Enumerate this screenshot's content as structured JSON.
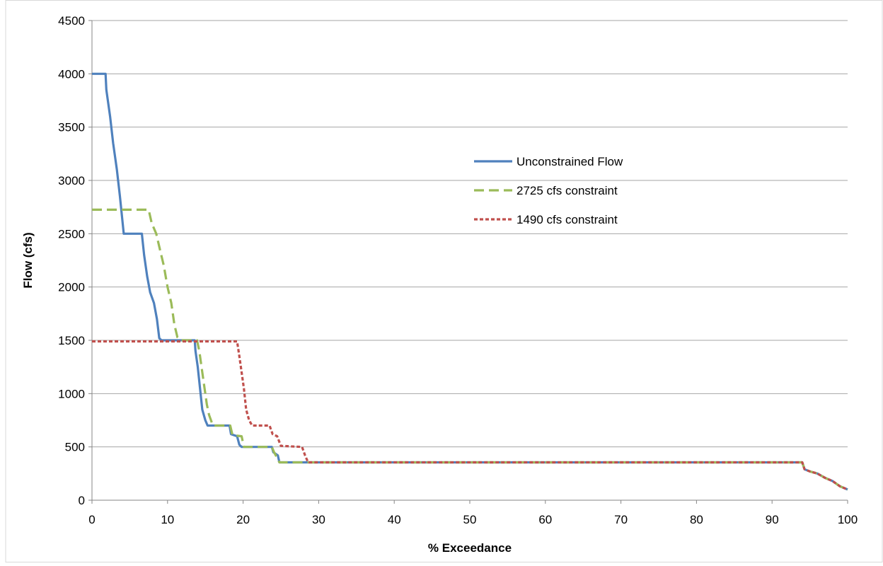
{
  "chart_data": {
    "type": "line",
    "title": "",
    "xlabel": "% Exceedance",
    "ylabel": "Flow (cfs)",
    "xlim": [
      0,
      100
    ],
    "ylim": [
      0,
      4500
    ],
    "x_ticks": [
      0,
      10,
      20,
      30,
      40,
      50,
      60,
      70,
      80,
      90,
      100
    ],
    "y_ticks": [
      0,
      500,
      1000,
      1500,
      2000,
      2500,
      3000,
      3500,
      4000,
      4500
    ],
    "grid": "horizontal",
    "legend_position": "upper-center-right",
    "series": [
      {
        "name": "Unconstrained Flow",
        "color": "#4F81BD",
        "style": "solid",
        "points": [
          [
            0,
            4000
          ],
          [
            1.8,
            4000
          ],
          [
            1.9,
            3850
          ],
          [
            2.4,
            3600
          ],
          [
            2.8,
            3350
          ],
          [
            3.3,
            3100
          ],
          [
            3.7,
            2850
          ],
          [
            4.2,
            2500
          ],
          [
            6.6,
            2500
          ],
          [
            6.9,
            2300
          ],
          [
            7.3,
            2100
          ],
          [
            7.7,
            1950
          ],
          [
            8.2,
            1850
          ],
          [
            8.6,
            1700
          ],
          [
            8.9,
            1520
          ],
          [
            9.2,
            1500
          ],
          [
            13.6,
            1500
          ],
          [
            13.7,
            1400
          ],
          [
            14.0,
            1250
          ],
          [
            14.3,
            1050
          ],
          [
            14.6,
            850
          ],
          [
            15.0,
            750
          ],
          [
            15.3,
            700
          ],
          [
            18.2,
            700
          ],
          [
            18.4,
            620
          ],
          [
            19.2,
            600
          ],
          [
            19.5,
            520
          ],
          [
            19.8,
            500
          ],
          [
            23.8,
            500
          ],
          [
            24.0,
            450
          ],
          [
            24.6,
            420
          ],
          [
            24.8,
            355
          ],
          [
            94.0,
            355
          ],
          [
            94.3,
            290
          ],
          [
            95.0,
            270
          ],
          [
            96.0,
            250
          ],
          [
            97.0,
            210
          ],
          [
            98.0,
            180
          ],
          [
            99.0,
            130
          ],
          [
            100,
            100
          ]
        ]
      },
      {
        "name": "2725 cfs constraint",
        "color": "#9BBB59",
        "style": "dashed",
        "points": [
          [
            0,
            2725
          ],
          [
            7.5,
            2725
          ],
          [
            7.9,
            2600
          ],
          [
            8.5,
            2500
          ],
          [
            9.0,
            2350
          ],
          [
            9.5,
            2200
          ],
          [
            10.0,
            2000
          ],
          [
            10.5,
            1850
          ],
          [
            10.9,
            1650
          ],
          [
            11.3,
            1530
          ],
          [
            11.7,
            1500
          ],
          [
            13.9,
            1500
          ],
          [
            14.2,
            1400
          ],
          [
            14.6,
            1200
          ],
          [
            14.9,
            1050
          ],
          [
            15.2,
            900
          ],
          [
            15.5,
            800
          ],
          [
            16.0,
            700
          ],
          [
            18.3,
            700
          ],
          [
            18.6,
            610
          ],
          [
            19.8,
            600
          ],
          [
            20.1,
            500
          ],
          [
            23.8,
            500
          ],
          [
            24.1,
            450
          ],
          [
            24.8,
            355
          ],
          [
            94.0,
            355
          ],
          [
            94.3,
            290
          ],
          [
            95.0,
            270
          ],
          [
            96.0,
            250
          ],
          [
            97.0,
            210
          ],
          [
            98.0,
            180
          ],
          [
            99.0,
            130
          ],
          [
            100,
            100
          ]
        ]
      },
      {
        "name": "1490 cfs constraint",
        "color": "#C0504D",
        "style": "dotted",
        "points": [
          [
            0,
            1490
          ],
          [
            19.2,
            1490
          ],
          [
            19.5,
            1350
          ],
          [
            19.8,
            1200
          ],
          [
            20.1,
            1050
          ],
          [
            20.4,
            850
          ],
          [
            20.8,
            750
          ],
          [
            21.2,
            700
          ],
          [
            23.5,
            700
          ],
          [
            23.9,
            620
          ],
          [
            24.5,
            600
          ],
          [
            25.0,
            510
          ],
          [
            27.8,
            500
          ],
          [
            28.2,
            420
          ],
          [
            28.6,
            355
          ],
          [
            94.0,
            355
          ],
          [
            94.3,
            290
          ],
          [
            95.0,
            270
          ],
          [
            96.0,
            250
          ],
          [
            97.0,
            210
          ],
          [
            98.0,
            180
          ],
          [
            99.0,
            130
          ],
          [
            100,
            100
          ]
        ]
      }
    ]
  }
}
